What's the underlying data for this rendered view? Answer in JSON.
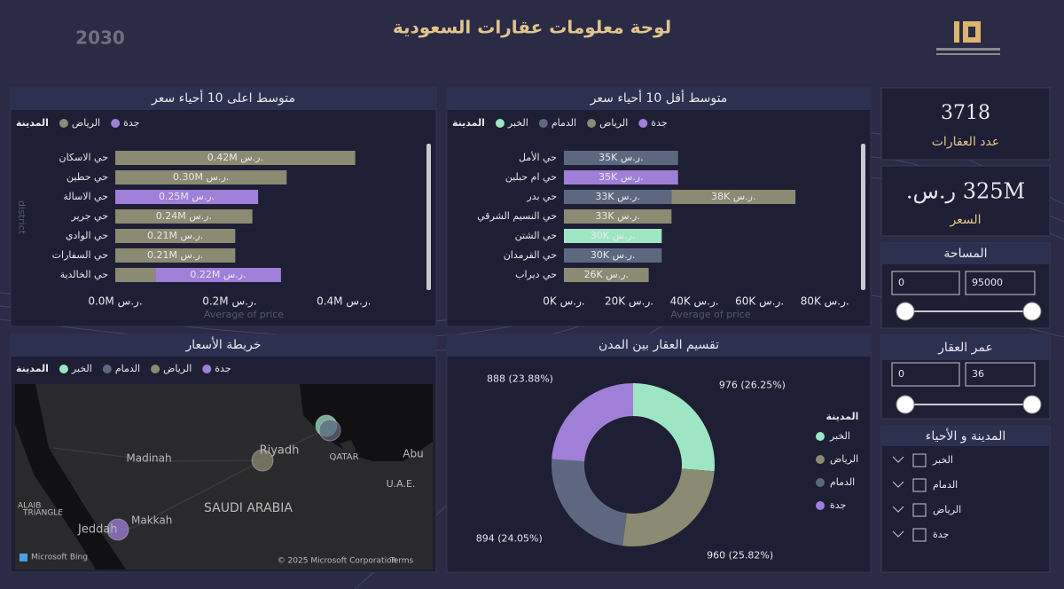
{
  "header": {
    "title": "لوحة معلومات عقارات السعودية",
    "logo_text": "2030"
  },
  "kpis": [
    {
      "value": 3718,
      "label": "عدد العقارات"
    },
    {
      "value": 325000000,
      "value_label": "325M ر.س.",
      "label": "السعر"
    }
  ],
  "slicers": [
    {
      "title": "المساحة",
      "min": 0,
      "max": 95000
    },
    {
      "title": "عمر العقار",
      "min": 0,
      "max": 36
    }
  ],
  "filter_list": {
    "title": "المدينة و الأحياء",
    "items": [
      "الخبر",
      "الدمام",
      "الرياض",
      "جدة"
    ]
  },
  "chart_data": [
    {
      "type": "bar",
      "orientation": "horizontal",
      "stacked": true,
      "title": "متوسط اعلى 10 أحياء سعر",
      "legend_title": "المدينة",
      "x_label": "Average of price",
      "y_label": "district",
      "categories": [
        "حي الاسكان",
        "حي حطين",
        "حي الاسالة",
        "حي جرير",
        "حي الوادي",
        "حي السفارات",
        "حي الخالدية"
      ],
      "series": [
        {
          "name": "الرياض",
          "color": "#8b8a72",
          "values": [
            420000,
            300000,
            null,
            240000,
            210000,
            210000,
            70000
          ],
          "value_labels": [
            "0.42M ر.س.",
            "0.30M ر.س.",
            null,
            "0.24M ر.س.",
            "0.21M ر.س.",
            "0.21M ر.س.",
            null
          ]
        },
        {
          "name": "جدة",
          "color": "#a07fd8",
          "values": [
            null,
            null,
            250000,
            null,
            null,
            null,
            220000
          ],
          "value_labels": [
            null,
            null,
            "0.25M ر.س.",
            null,
            null,
            null,
            "0.22M ر.س."
          ]
        }
      ],
      "xlim": [
        0,
        450000
      ],
      "xticks": [
        {
          "value": 0,
          "label": "0.0M ر.س."
        },
        {
          "value": 200000,
          "label": "0.2M ر.س."
        },
        {
          "value": 400000,
          "label": "0.4M ر.س."
        }
      ]
    },
    {
      "type": "bar",
      "orientation": "horizontal",
      "stacked": true,
      "title": "متوسط أقل 10 أحياء سعر",
      "legend_title": "المدينة",
      "x_label": "Average of price",
      "categories": [
        "حي الأمل",
        "حي ام حبلين",
        "حي بدر",
        "حي النسيم الشرقي",
        "حي الشتن",
        "حي القرمدان",
        "حي ديراب"
      ],
      "series": [
        {
          "name": "الخبر",
          "color": "#9ee6c3",
          "values": [
            null,
            null,
            null,
            null,
            30000,
            null,
            null
          ],
          "value_labels": [
            null,
            null,
            null,
            null,
            "30K ر.س.",
            null,
            null
          ]
        },
        {
          "name": "الدمام",
          "color": "#5d6880",
          "values": [
            35000,
            null,
            33000,
            null,
            null,
            30000,
            null
          ],
          "value_labels": [
            "35K ر.س.",
            null,
            "33K ر.س.",
            null,
            null,
            "30K ر.س.",
            null
          ]
        },
        {
          "name": "الرياض",
          "color": "#8b8a72",
          "values": [
            null,
            null,
            38000,
            33000,
            null,
            null,
            26000
          ],
          "value_labels": [
            null,
            null,
            "38K ر.س.",
            "33K ر.س.",
            null,
            null,
            "26K ر.س."
          ]
        },
        {
          "name": "جدة",
          "color": "#a07fd8",
          "values": [
            null,
            35000,
            null,
            null,
            null,
            null,
            null
          ],
          "value_labels": [
            null,
            "35K ر.س.",
            null,
            null,
            null,
            null,
            null
          ]
        }
      ],
      "xlim": [
        0,
        90000
      ],
      "xticks": [
        {
          "value": 0,
          "label": "0K ر.س."
        },
        {
          "value": 20000,
          "label": "20K ر.س."
        },
        {
          "value": 40000,
          "label": "40K ر.س."
        },
        {
          "value": 60000,
          "label": "60K ر.س."
        },
        {
          "value": 80000,
          "label": "80K ر.س."
        }
      ]
    },
    {
      "type": "map",
      "title": "خريطة الأسعار",
      "legend_title": "المدينة",
      "series": [
        {
          "name": "الخبر",
          "color": "#9ee6c3"
        },
        {
          "name": "الدمام",
          "color": "#5d6880"
        },
        {
          "name": "الرياض",
          "color": "#8b8a72"
        },
        {
          "name": "جدة",
          "color": "#a07fd8"
        }
      ],
      "labels": [
        "Riyadh",
        "Madinah",
        "SAUDI ARABIA",
        "QATAR",
        "Abu",
        "U.A.E.",
        "Makkah",
        "Jeddah",
        "ALAIB",
        "TRIANGLE",
        "Microsoft Bing",
        "© 2025 Microsoft Corporation",
        "Terms"
      ]
    },
    {
      "type": "donut",
      "title": "تقسيم العقار بين المدن",
      "legend_title": "المدينة",
      "categories": [
        "الخبر",
        "الرياض",
        "الدمام",
        "جدة"
      ],
      "values": [
        976,
        960,
        894,
        888
      ],
      "value_labels": [
        "976 (26.25%)",
        "960 (25.82%)",
        "894 (24.05%)",
        "888 (23.88%)"
      ],
      "colors": [
        "#9ee6c3",
        "#8b8a72",
        "#5d6880",
        "#a07fd8"
      ]
    }
  ]
}
